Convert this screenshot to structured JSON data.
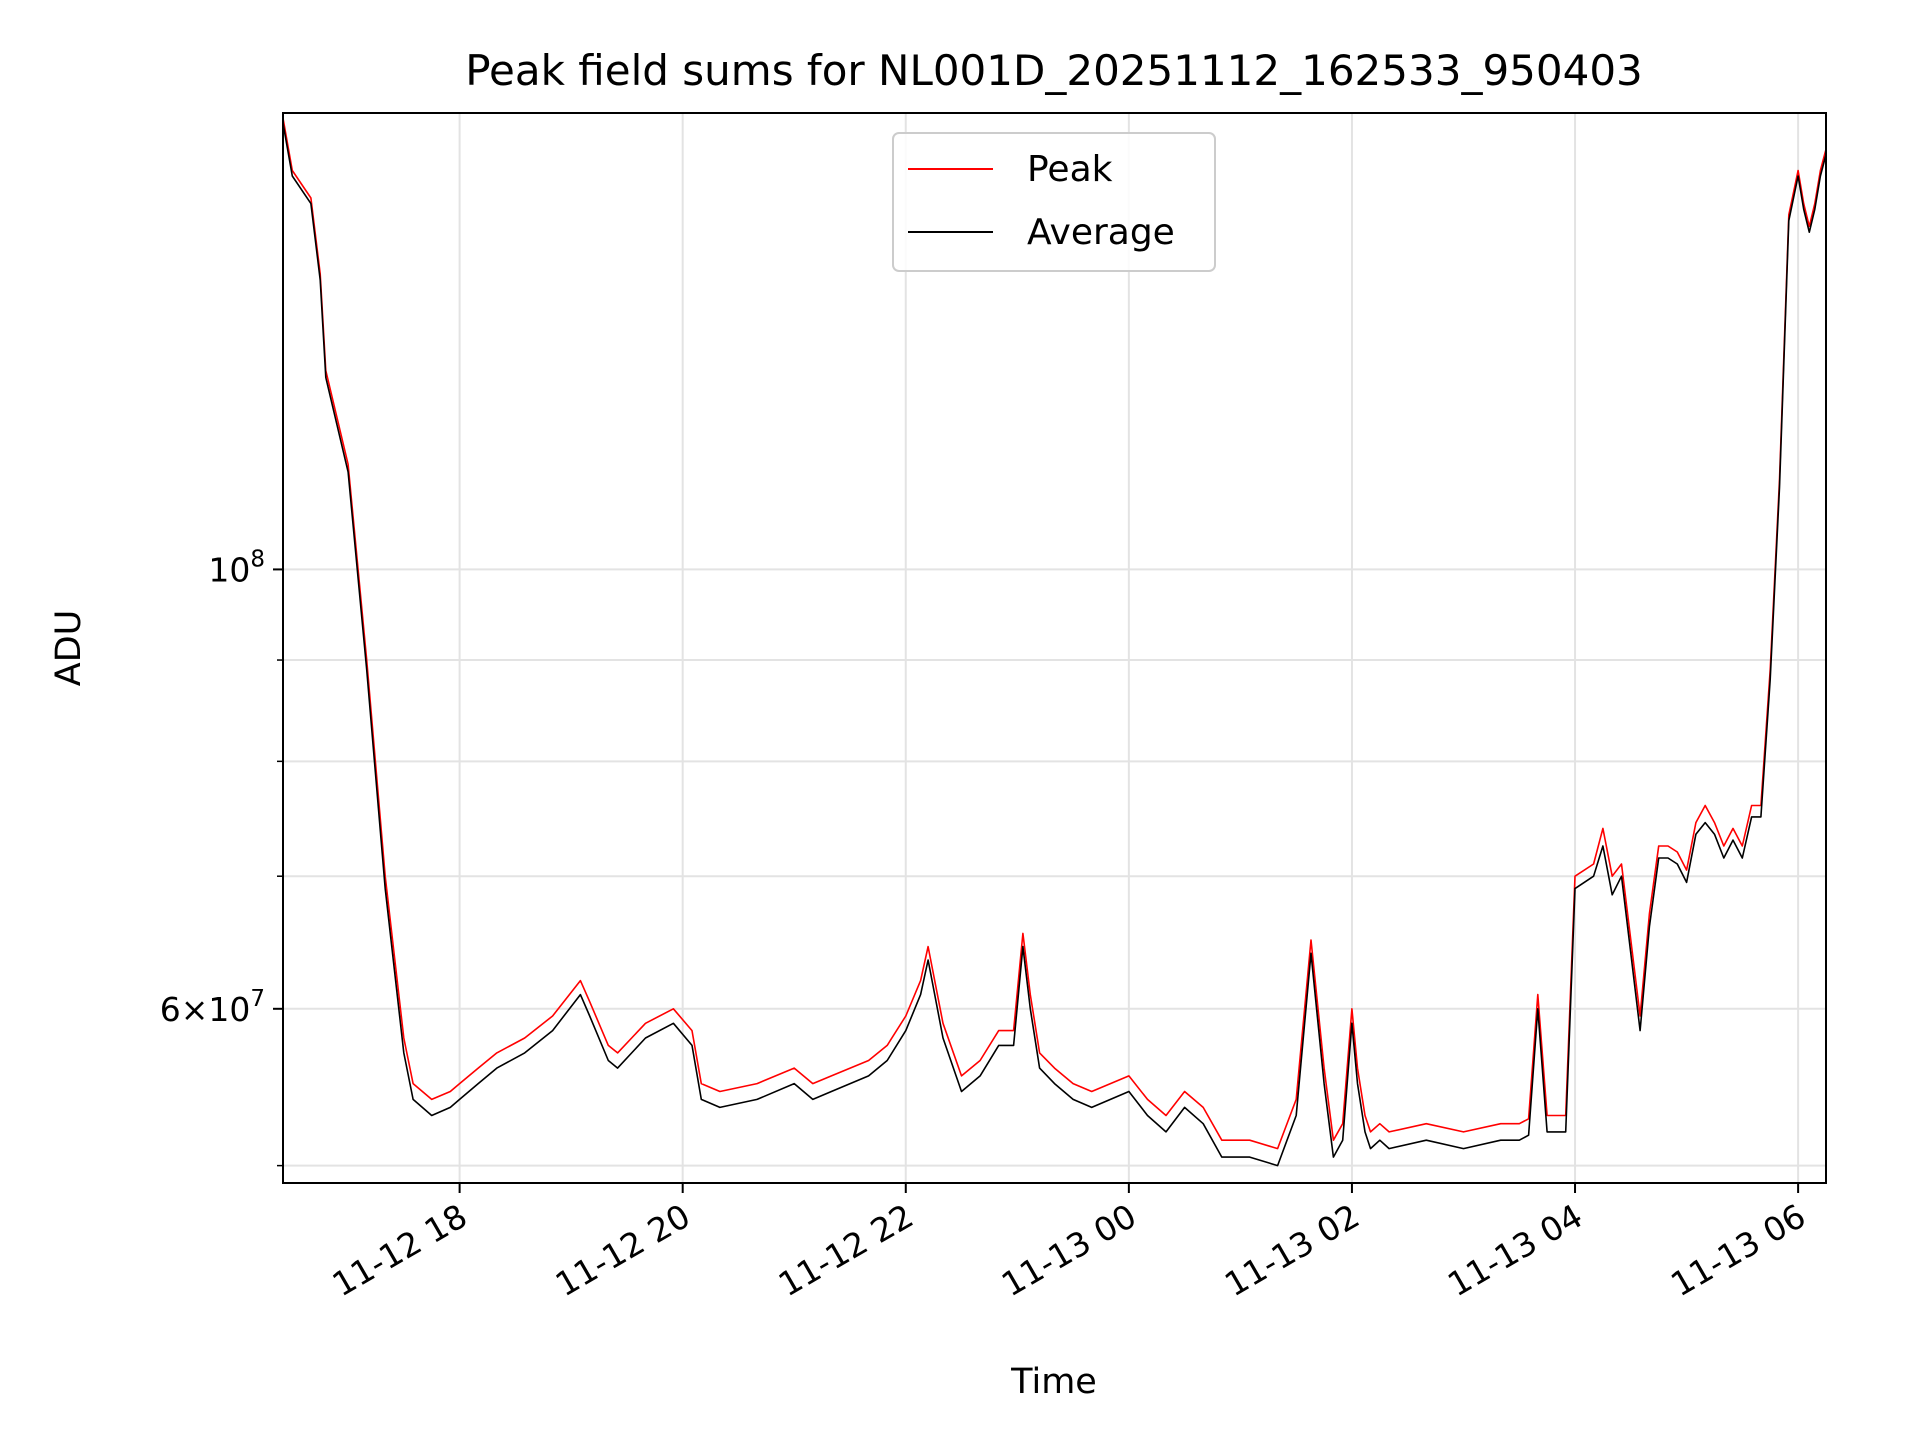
{
  "chart_data": {
    "type": "line",
    "title": "Peak field sums for NL001D_20251112_162533_950403",
    "xlabel": "Time",
    "ylabel": "ADU",
    "y_scale": "log",
    "ylim": [
      49000000,
      170000000
    ],
    "xlim": [
      "2025-11-12T16:25",
      "2025-11-13T06:15"
    ],
    "grid": true,
    "legend_position": "upper center",
    "x_ticks": [
      {
        "t": "2025-11-12T18:00",
        "label": "11-12 18"
      },
      {
        "t": "2025-11-12T20:00",
        "label": "11-12 20"
      },
      {
        "t": "2025-11-12T22:00",
        "label": "11-12 22"
      },
      {
        "t": "2025-11-13T00:00",
        "label": "11-13 00"
      },
      {
        "t": "2025-11-13T02:00",
        "label": "11-13 02"
      },
      {
        "t": "2025-11-13T04:00",
        "label": "11-13 04"
      },
      {
        "t": "2025-11-13T06:00",
        "label": "11-13 06"
      }
    ],
    "y_major_ticks": [
      {
        "v": 60000000,
        "base": "6×10",
        "exp": "7"
      },
      {
        "v": 100000000,
        "base": "10",
        "exp": "8"
      }
    ],
    "y_minor_ticks": [
      50000000,
      70000000,
      80000000,
      90000000
    ],
    "series": [
      {
        "name": "Average",
        "color": "#000000",
        "x": [
          "2025-11-12T16:25",
          "2025-11-12T16:30",
          "2025-11-12T16:40",
          "2025-11-12T16:45",
          "2025-11-12T16:48",
          "2025-11-12T17:00",
          "2025-11-12T17:10",
          "2025-11-12T17:20",
          "2025-11-12T17:30",
          "2025-11-12T17:35",
          "2025-11-12T17:45",
          "2025-11-12T17:55",
          "2025-11-12T18:00",
          "2025-11-12T18:10",
          "2025-11-12T18:20",
          "2025-11-12T18:35",
          "2025-11-12T18:50",
          "2025-11-12T19:05",
          "2025-11-12T19:10",
          "2025-11-12T19:20",
          "2025-11-12T19:25",
          "2025-11-12T19:40",
          "2025-11-12T19:55",
          "2025-11-12T20:05",
          "2025-11-12T20:10",
          "2025-11-12T20:20",
          "2025-11-12T20:40",
          "2025-11-12T21:00",
          "2025-11-12T21:10",
          "2025-11-12T21:20",
          "2025-11-12T21:40",
          "2025-11-12T21:50",
          "2025-11-12T22:00",
          "2025-11-12T22:08",
          "2025-11-12T22:12",
          "2025-11-12T22:20",
          "2025-11-12T22:30",
          "2025-11-12T22:40",
          "2025-11-12T22:50",
          "2025-11-12T22:58",
          "2025-11-12T23:03",
          "2025-11-12T23:07",
          "2025-11-12T23:12",
          "2025-11-12T23:20",
          "2025-11-12T23:30",
          "2025-11-12T23:40",
          "2025-11-13T00:00",
          "2025-11-13T00:10",
          "2025-11-13T00:20",
          "2025-11-13T00:30",
          "2025-11-13T00:40",
          "2025-11-13T00:50",
          "2025-11-13T01:05",
          "2025-11-13T01:20",
          "2025-11-13T01:30",
          "2025-11-13T01:38",
          "2025-11-13T01:45",
          "2025-11-13T01:50",
          "2025-11-13T01:55",
          "2025-11-13T02:00",
          "2025-11-13T02:03",
          "2025-11-13T02:07",
          "2025-11-13T02:10",
          "2025-11-13T02:15",
          "2025-11-13T02:20",
          "2025-11-13T02:40",
          "2025-11-13T03:00",
          "2025-11-13T03:20",
          "2025-11-13T03:30",
          "2025-11-13T03:35",
          "2025-11-13T03:40",
          "2025-11-13T03:45",
          "2025-11-13T03:50",
          "2025-11-13T03:55",
          "2025-11-13T04:00",
          "2025-11-13T04:10",
          "2025-11-13T04:15",
          "2025-11-13T04:20",
          "2025-11-13T04:25",
          "2025-11-13T04:30",
          "2025-11-13T04:35",
          "2025-11-13T04:40",
          "2025-11-13T04:45",
          "2025-11-13T04:50",
          "2025-11-13T04:55",
          "2025-11-13T05:00",
          "2025-11-13T05:05",
          "2025-11-13T05:10",
          "2025-11-13T05:15",
          "2025-11-13T05:20",
          "2025-11-13T05:25",
          "2025-11-13T05:30",
          "2025-11-13T05:35",
          "2025-11-13T05:40",
          "2025-11-13T05:45",
          "2025-11-13T05:50",
          "2025-11-13T05:55",
          "2025-11-13T06:00",
          "2025-11-13T06:03",
          "2025-11-13T06:06",
          "2025-11-13T06:09",
          "2025-11-13T06:12",
          "2025-11-13T06:15"
        ],
        "values": [
          168000000,
          158000000,
          153000000,
          140000000,
          125000000,
          112000000,
          89000000,
          69000000,
          57000000,
          54000000,
          53000000,
          53500000,
          54000000,
          55000000,
          56000000,
          57000000,
          58500000,
          61000000,
          59500000,
          56500000,
          56000000,
          58000000,
          59000000,
          57500000,
          54000000,
          53500000,
          54000000,
          55000000,
          54000000,
          54500000,
          55500000,
          56500000,
          58500000,
          61000000,
          63500000,
          58000000,
          54500000,
          55500000,
          57500000,
          57500000,
          64500000,
          60000000,
          56000000,
          55000000,
          54000000,
          53500000,
          54500000,
          53000000,
          52000000,
          53500000,
          52500000,
          50500000,
          50500000,
          50000000,
          53000000,
          64000000,
          55000000,
          50500000,
          51500000,
          59000000,
          55000000,
          52000000,
          51000000,
          51500000,
          51000000,
          51500000,
          51000000,
          51500000,
          51500000,
          51800000,
          60000000,
          52000000,
          52000000,
          52000000,
          69000000,
          70000000,
          72500000,
          68500000,
          70000000,
          64000000,
          58500000,
          66000000,
          71500000,
          71500000,
          71000000,
          69500000,
          73500000,
          74500000,
          73500000,
          71500000,
          73000000,
          71500000,
          75000000,
          75000000,
          88000000,
          110000000,
          150000000,
          158000000,
          152000000,
          148000000,
          152000000,
          158000000,
          162000000
        ]
      },
      {
        "name": "Peak",
        "color": "#ff0000",
        "x": [
          "2025-11-12T16:25",
          "2025-11-12T16:30",
          "2025-11-12T16:40",
          "2025-11-12T16:45",
          "2025-11-12T16:48",
          "2025-11-12T17:00",
          "2025-11-12T17:10",
          "2025-11-12T17:20",
          "2025-11-12T17:30",
          "2025-11-12T17:35",
          "2025-11-12T17:45",
          "2025-11-12T17:55",
          "2025-11-12T18:00",
          "2025-11-12T18:10",
          "2025-11-12T18:20",
          "2025-11-12T18:35",
          "2025-11-12T18:50",
          "2025-11-12T19:05",
          "2025-11-12T19:10",
          "2025-11-12T19:20",
          "2025-11-12T19:25",
          "2025-11-12T19:40",
          "2025-11-12T19:55",
          "2025-11-12T20:05",
          "2025-11-12T20:10",
          "2025-11-12T20:20",
          "2025-11-12T20:40",
          "2025-11-12T21:00",
          "2025-11-12T21:10",
          "2025-11-12T21:20",
          "2025-11-12T21:40",
          "2025-11-12T21:50",
          "2025-11-12T22:00",
          "2025-11-12T22:08",
          "2025-11-12T22:12",
          "2025-11-12T22:20",
          "2025-11-12T22:30",
          "2025-11-12T22:40",
          "2025-11-12T22:50",
          "2025-11-12T22:58",
          "2025-11-12T23:03",
          "2025-11-12T23:07",
          "2025-11-12T23:12",
          "2025-11-12T23:20",
          "2025-11-12T23:30",
          "2025-11-12T23:40",
          "2025-11-13T00:00",
          "2025-11-13T00:10",
          "2025-11-13T00:20",
          "2025-11-13T00:30",
          "2025-11-13T00:40",
          "2025-11-13T00:50",
          "2025-11-13T01:05",
          "2025-11-13T01:20",
          "2025-11-13T01:30",
          "2025-11-13T01:38",
          "2025-11-13T01:45",
          "2025-11-13T01:50",
          "2025-11-13T01:55",
          "2025-11-13T02:00",
          "2025-11-13T02:03",
          "2025-11-13T02:07",
          "2025-11-13T02:10",
          "2025-11-13T02:15",
          "2025-11-13T02:20",
          "2025-11-13T02:40",
          "2025-11-13T03:00",
          "2025-11-13T03:20",
          "2025-11-13T03:30",
          "2025-11-13T03:35",
          "2025-11-13T03:40",
          "2025-11-13T03:45",
          "2025-11-13T03:50",
          "2025-11-13T03:55",
          "2025-11-13T04:00",
          "2025-11-13T04:10",
          "2025-11-13T04:15",
          "2025-11-13T04:20",
          "2025-11-13T04:25",
          "2025-11-13T04:30",
          "2025-11-13T04:35",
          "2025-11-13T04:40",
          "2025-11-13T04:45",
          "2025-11-13T04:50",
          "2025-11-13T04:55",
          "2025-11-13T05:00",
          "2025-11-13T05:05",
          "2025-11-13T05:10",
          "2025-11-13T05:15",
          "2025-11-13T05:20",
          "2025-11-13T05:25",
          "2025-11-13T05:30",
          "2025-11-13T05:35",
          "2025-11-13T05:40",
          "2025-11-13T05:45",
          "2025-11-13T05:50",
          "2025-11-13T05:55",
          "2025-11-13T06:00",
          "2025-11-13T06:03",
          "2025-11-13T06:06",
          "2025-11-13T06:09",
          "2025-11-13T06:12",
          "2025-11-13T06:15"
        ],
        "values": [
          169000000,
          159000000,
          154000000,
          141000000,
          126000000,
          113000000,
          90000000,
          70000000,
          58000000,
          55000000,
          54000000,
          54500000,
          55000000,
          56000000,
          57000000,
          58000000,
          59500000,
          62000000,
          60500000,
          57500000,
          57000000,
          59000000,
          60000000,
          58500000,
          55000000,
          54500000,
          55000000,
          56000000,
          55000000,
          55500000,
          56500000,
          57500000,
          59500000,
          62000000,
          64500000,
          59000000,
          55500000,
          56500000,
          58500000,
          58500000,
          65500000,
          61000000,
          57000000,
          56000000,
          55000000,
          54500000,
          55500000,
          54000000,
          53000000,
          54500000,
          53500000,
          51500000,
          51500000,
          51000000,
          54000000,
          65000000,
          56000000,
          51500000,
          52500000,
          60000000,
          56000000,
          53000000,
          52000000,
          52500000,
          52000000,
          52500000,
          52000000,
          52500000,
          52500000,
          52800000,
          61000000,
          53000000,
          53000000,
          53000000,
          70000000,
          71000000,
          74000000,
          70000000,
          71000000,
          65000000,
          59500000,
          67000000,
          72500000,
          72500000,
          72000000,
          70500000,
          74500000,
          76000000,
          74500000,
          72500000,
          74000000,
          72500000,
          76000000,
          76000000,
          89000000,
          111000000,
          151000000,
          159000000,
          153000000,
          149000000,
          153000000,
          159000000,
          163000000
        ]
      }
    ],
    "legend": [
      {
        "label": "Peak",
        "color": "#ff0000"
      },
      {
        "label": "Average",
        "color": "#000000"
      }
    ]
  }
}
